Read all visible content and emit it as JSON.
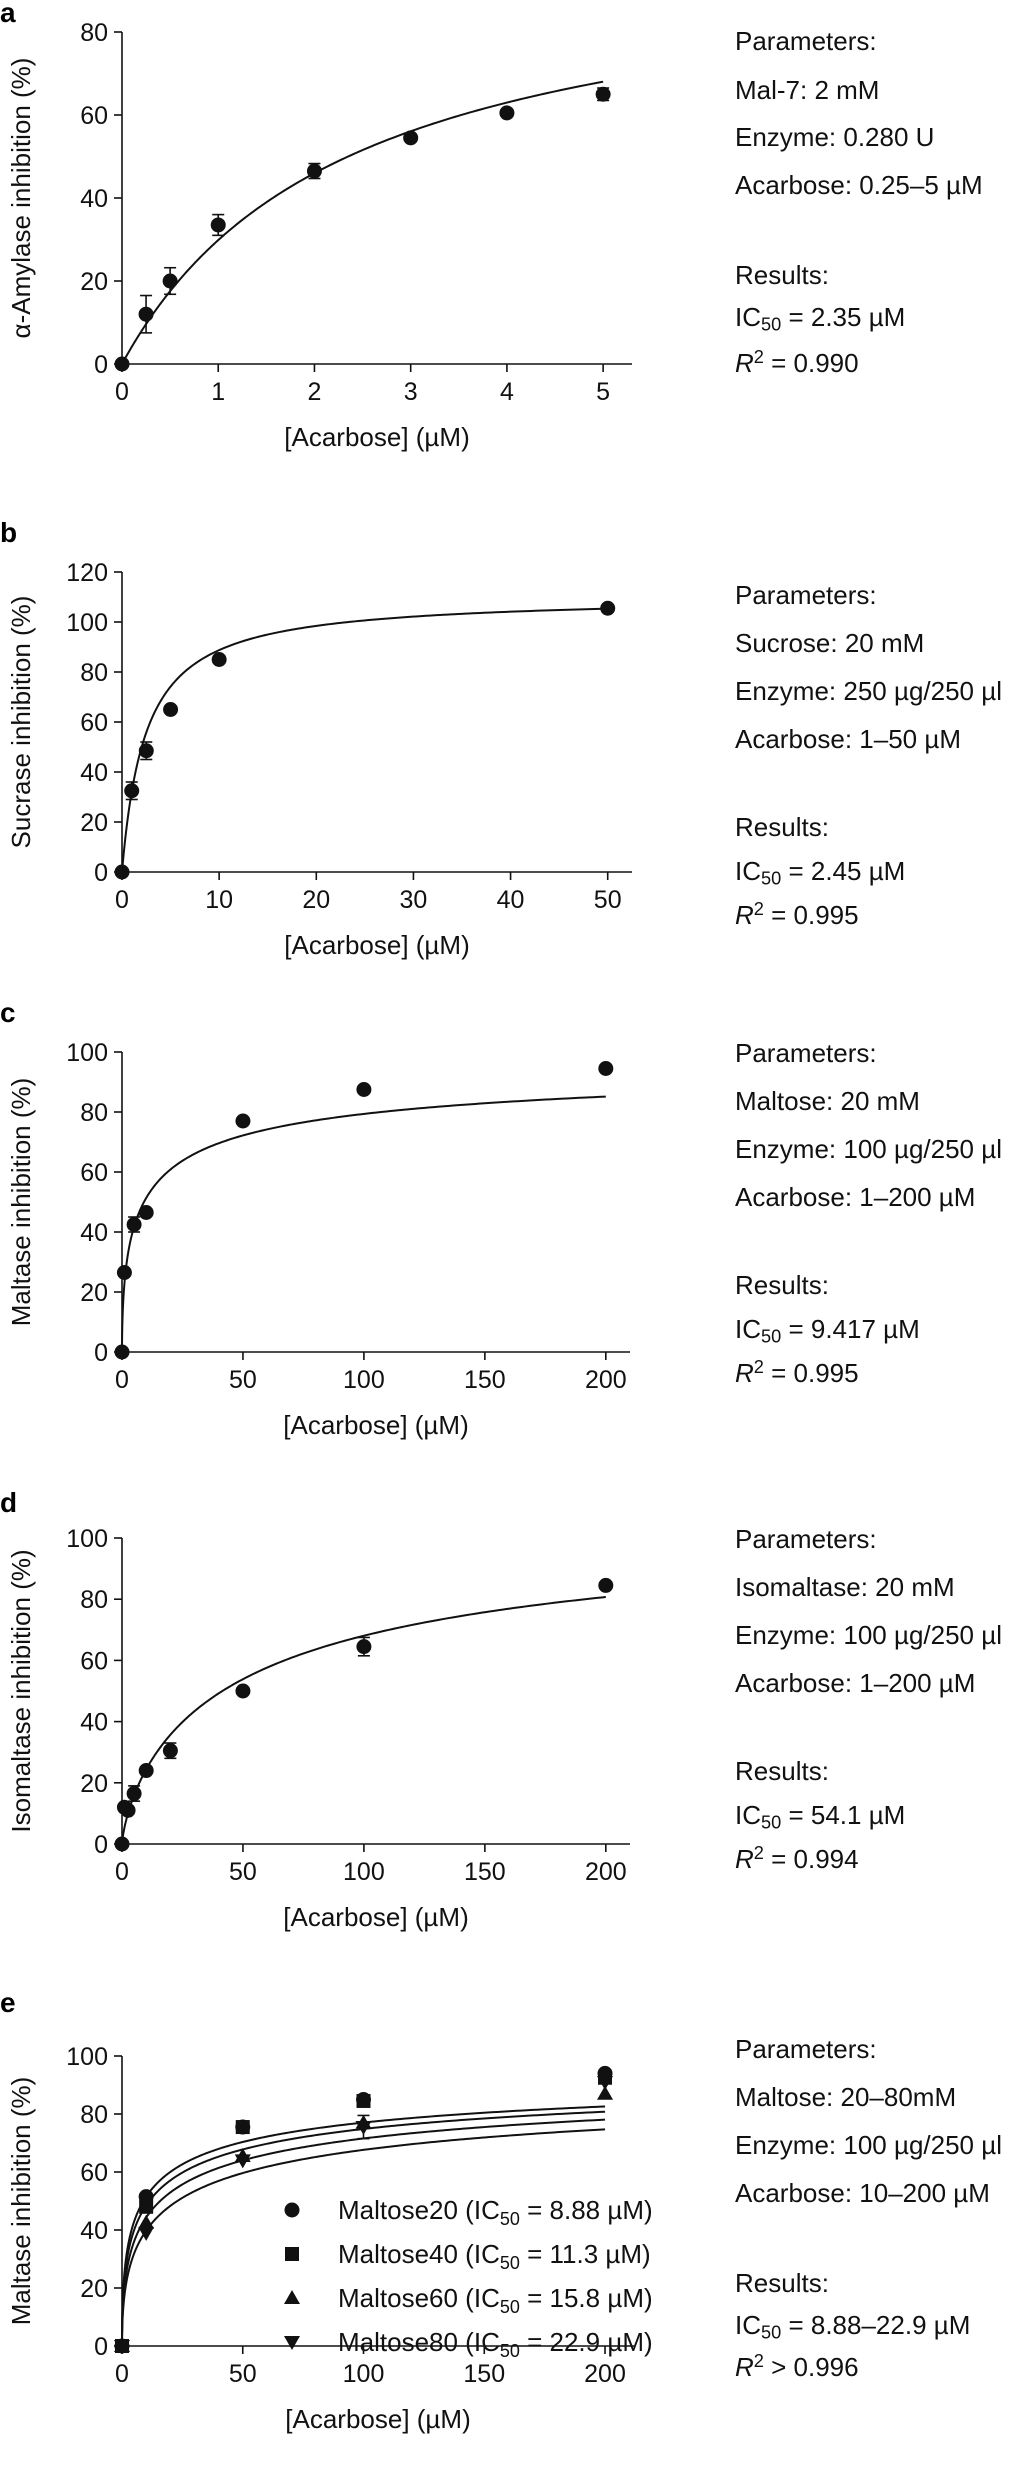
{
  "chart_data": [
    {
      "panel": "a",
      "type": "scatter",
      "xlabel": "[Acarbose] (µM)",
      "ylabel": "α-Amylase inhibition (%)",
      "xlim": [
        0,
        5.3
      ],
      "ylim": [
        0,
        80
      ],
      "xticks": [
        0,
        1,
        2,
        3,
        4,
        5
      ],
      "yticks": [
        0,
        20,
        40,
        60,
        80
      ],
      "grid": false,
      "series": [
        {
          "marker": "circle",
          "x": [
            0,
            0.25,
            0.5,
            1,
            2,
            3,
            4,
            5
          ],
          "y": [
            0,
            12,
            20,
            33.5,
            46.5,
            54.5,
            60.5,
            65
          ],
          "err": [
            0,
            4.5,
            3.2,
            2.5,
            1.8,
            0.8,
            0.6,
            1.5
          ],
          "fit": {
            "ic50": 2.35,
            "top": 100,
            "h": 1
          }
        }
      ],
      "parameters_heading": "Parameters:",
      "parameters": [
        "Mal-7: 2 mM",
        "Enzyme: 0.280 U",
        "Acarbose: 0.25–5 µM"
      ],
      "results_heading": "Results:",
      "ic50_label": "IC",
      "ic50_sub": "50",
      "ic50_value": " = 2.35 µM",
      "r2_label": "R",
      "r2_sup": "2",
      "r2_value": " = 0.990"
    },
    {
      "panel": "b",
      "type": "scatter",
      "xlabel": "[Acarbose] (µM)",
      "ylabel": "Sucrase inhibition (%)",
      "xlim": [
        0,
        52.5
      ],
      "ylim": [
        0,
        120
      ],
      "xticks": [
        0,
        10,
        20,
        30,
        40,
        50
      ],
      "yticks": [
        0,
        20,
        40,
        60,
        80,
        100,
        120
      ],
      "grid": false,
      "series": [
        {
          "marker": "circle",
          "x": [
            0,
            1,
            2.5,
            5,
            10,
            50
          ],
          "y": [
            0,
            32.5,
            48.5,
            65,
            85,
            105.5
          ],
          "err": [
            0,
            3.5,
            3.5,
            1,
            1,
            0.5
          ],
          "fit": {
            "ic50": 2.45,
            "top": 110.5,
            "h": 1
          }
        }
      ],
      "parameters_heading": "Parameters:",
      "parameters": [
        "Sucrose: 20 mM",
        "Enzyme: 250 µg/250 µl",
        "Acarbose: 1–50 µM"
      ],
      "results_heading": "Results:",
      "ic50_label": "IC",
      "ic50_sub": "50",
      "ic50_value": " = 2.45 µM",
      "r2_label": "R",
      "r2_sup": "2",
      "r2_value": " = 0.995"
    },
    {
      "panel": "c",
      "type": "scatter",
      "xlabel": "[Acarbose] (µM)",
      "ylabel": "Maltase inhibition (%)",
      "xlim": [
        0,
        210
      ],
      "ylim": [
        0,
        100
      ],
      "xticks": [
        0,
        50,
        100,
        150,
        200
      ],
      "yticks": [
        0,
        20,
        40,
        60,
        80,
        100
      ],
      "grid": false,
      "series": [
        {
          "marker": "circle",
          "x": [
            0,
            1,
            5,
            10,
            50,
            100,
            200
          ],
          "y": [
            0,
            26.5,
            42.5,
            46.5,
            77,
            87.5,
            94.5
          ],
          "err": [
            0,
            0.5,
            2.5,
            1,
            1,
            0.5,
            0.5
          ],
          "fit": {
            "ic50": 9.417,
            "top": 101,
            "h": 0.55
          }
        }
      ],
      "parameters_heading": "Parameters:",
      "parameters": [
        "Maltose: 20 mM",
        "Enzyme: 100 µg/250 µl",
        "Acarbose: 1–200 µM"
      ],
      "results_heading": "Results:",
      "ic50_label": "IC",
      "ic50_sub": "50",
      "ic50_value": " = 9.417 µM",
      "r2_label": "R",
      "r2_sup": "2",
      "r2_value": " = 0.995"
    },
    {
      "panel": "d",
      "type": "scatter",
      "xlabel": "[Acarbose] (µM)",
      "ylabel": "Isomaltase inhibition (%)",
      "xlim": [
        0,
        210
      ],
      "ylim": [
        0,
        100
      ],
      "xticks": [
        0,
        50,
        100,
        150,
        200
      ],
      "yticks": [
        0,
        20,
        40,
        60,
        80,
        100
      ],
      "grid": false,
      "series": [
        {
          "marker": "circle",
          "x": [
            0,
            1,
            2.5,
            5,
            10,
            20,
            50,
            100,
            200
          ],
          "y": [
            0,
            12,
            11,
            16.5,
            24,
            30.5,
            50,
            64.5,
            84.5
          ],
          "err": [
            0,
            0.5,
            1,
            2.5,
            1,
            2.5,
            0.5,
            3,
            0.5
          ],
          "fit": {
            "ic50": 54.1,
            "top": 111,
            "h": 0.75
          }
        }
      ],
      "parameters_heading": "Parameters:",
      "parameters": [
        "Isomaltase: 20 mM",
        "Enzyme: 100 µg/250 µl",
        "Acarbose: 1–200 µM"
      ],
      "results_heading": "Results:",
      "ic50_label": "IC",
      "ic50_sub": "50",
      "ic50_value": " = 54.1 µM",
      "r2_label": "R",
      "r2_sup": "2",
      "r2_value": " = 0.994"
    },
    {
      "panel": "e",
      "type": "scatter",
      "xlabel": "[Acarbose] (µM)",
      "ylabel": "Maltase inhibition (%)",
      "xlim": [
        0,
        212
      ],
      "ylim": [
        0,
        100
      ],
      "xticks": [
        0,
        50,
        100,
        150,
        200
      ],
      "yticks": [
        0,
        20,
        40,
        60,
        80,
        100
      ],
      "grid": false,
      "legend_position": "bottom-center",
      "series": [
        {
          "name": "Maltose20 (IC50 = 8.88 µM)",
          "legend_prefix": "Maltose20 (IC",
          "legend_sub": "50",
          "legend_suffix": " = 8.88 µM)",
          "marker": "circle",
          "x": [
            0,
            10,
            50,
            100,
            200
          ],
          "y": [
            0,
            51.5,
            75.5,
            85,
            94
          ],
          "err": [
            0,
            0.5,
            0.5,
            0.5,
            0.5
          ],
          "fit": {
            "ic50": 8.88,
            "top": 100,
            "h": 0.5
          }
        },
        {
          "name": "Maltose40 (IC50 = 11.3 µM)",
          "legend_prefix": "Maltose40 (IC",
          "legend_sub": "50",
          "legend_suffix": " = 11.3 µM)",
          "marker": "square",
          "x": [
            0,
            10,
            50,
            100,
            200
          ],
          "y": [
            0,
            48,
            75.5,
            84.5,
            92.5
          ],
          "err": [
            0,
            0.5,
            0.5,
            0.5,
            0.5
          ],
          "fit": {
            "ic50": 11.3,
            "top": 100,
            "h": 0.5
          }
        },
        {
          "name": "Maltose60 (IC50 = 15.8 µM)",
          "legend_prefix": "Maltose60 (IC",
          "legend_sub": "50",
          "legend_suffix": " = 15.8 µM)",
          "marker": "triangle-up",
          "x": [
            0,
            10,
            50,
            100,
            200
          ],
          "y": [
            0,
            42.5,
            65.5,
            77,
            87
          ],
          "err": [
            0,
            0.5,
            0.5,
            0.5,
            0.5
          ],
          "fit": {
            "ic50": 15.8,
            "top": 100,
            "h": 0.5
          }
        },
        {
          "name": "Maltose80 (IC50 = 22.9 µM)",
          "legend_prefix": "Maltose80 (IC",
          "legend_sub": "50",
          "legend_suffix": " = 22.9 µM)",
          "marker": "triangle-down",
          "x": [
            0,
            10,
            50,
            100,
            200
          ],
          "y": [
            0,
            39,
            64,
            75.5,
            91
          ],
          "err": [
            0,
            0.5,
            0.5,
            4,
            0.5
          ],
          "fit": {
            "ic50": 22.9,
            "top": 100,
            "h": 0.5
          }
        }
      ],
      "parameters_heading": "Parameters:",
      "parameters": [
        "Maltose: 20–80mM",
        "Enzyme: 100 µg/250 µl",
        "Acarbose: 10–200 µM"
      ],
      "results_heading": "Results:",
      "ic50_label": "IC",
      "ic50_sub": "50",
      "ic50_value": " = 8.88–22.9 µM",
      "r2_label": "R",
      "r2_sup": "2",
      "r2_value": " > 0.996"
    }
  ],
  "panel_letters": [
    "a",
    "b",
    "c",
    "d",
    "e"
  ],
  "colors": {
    "ink": "#111111",
    "background": "#ffffff"
  }
}
